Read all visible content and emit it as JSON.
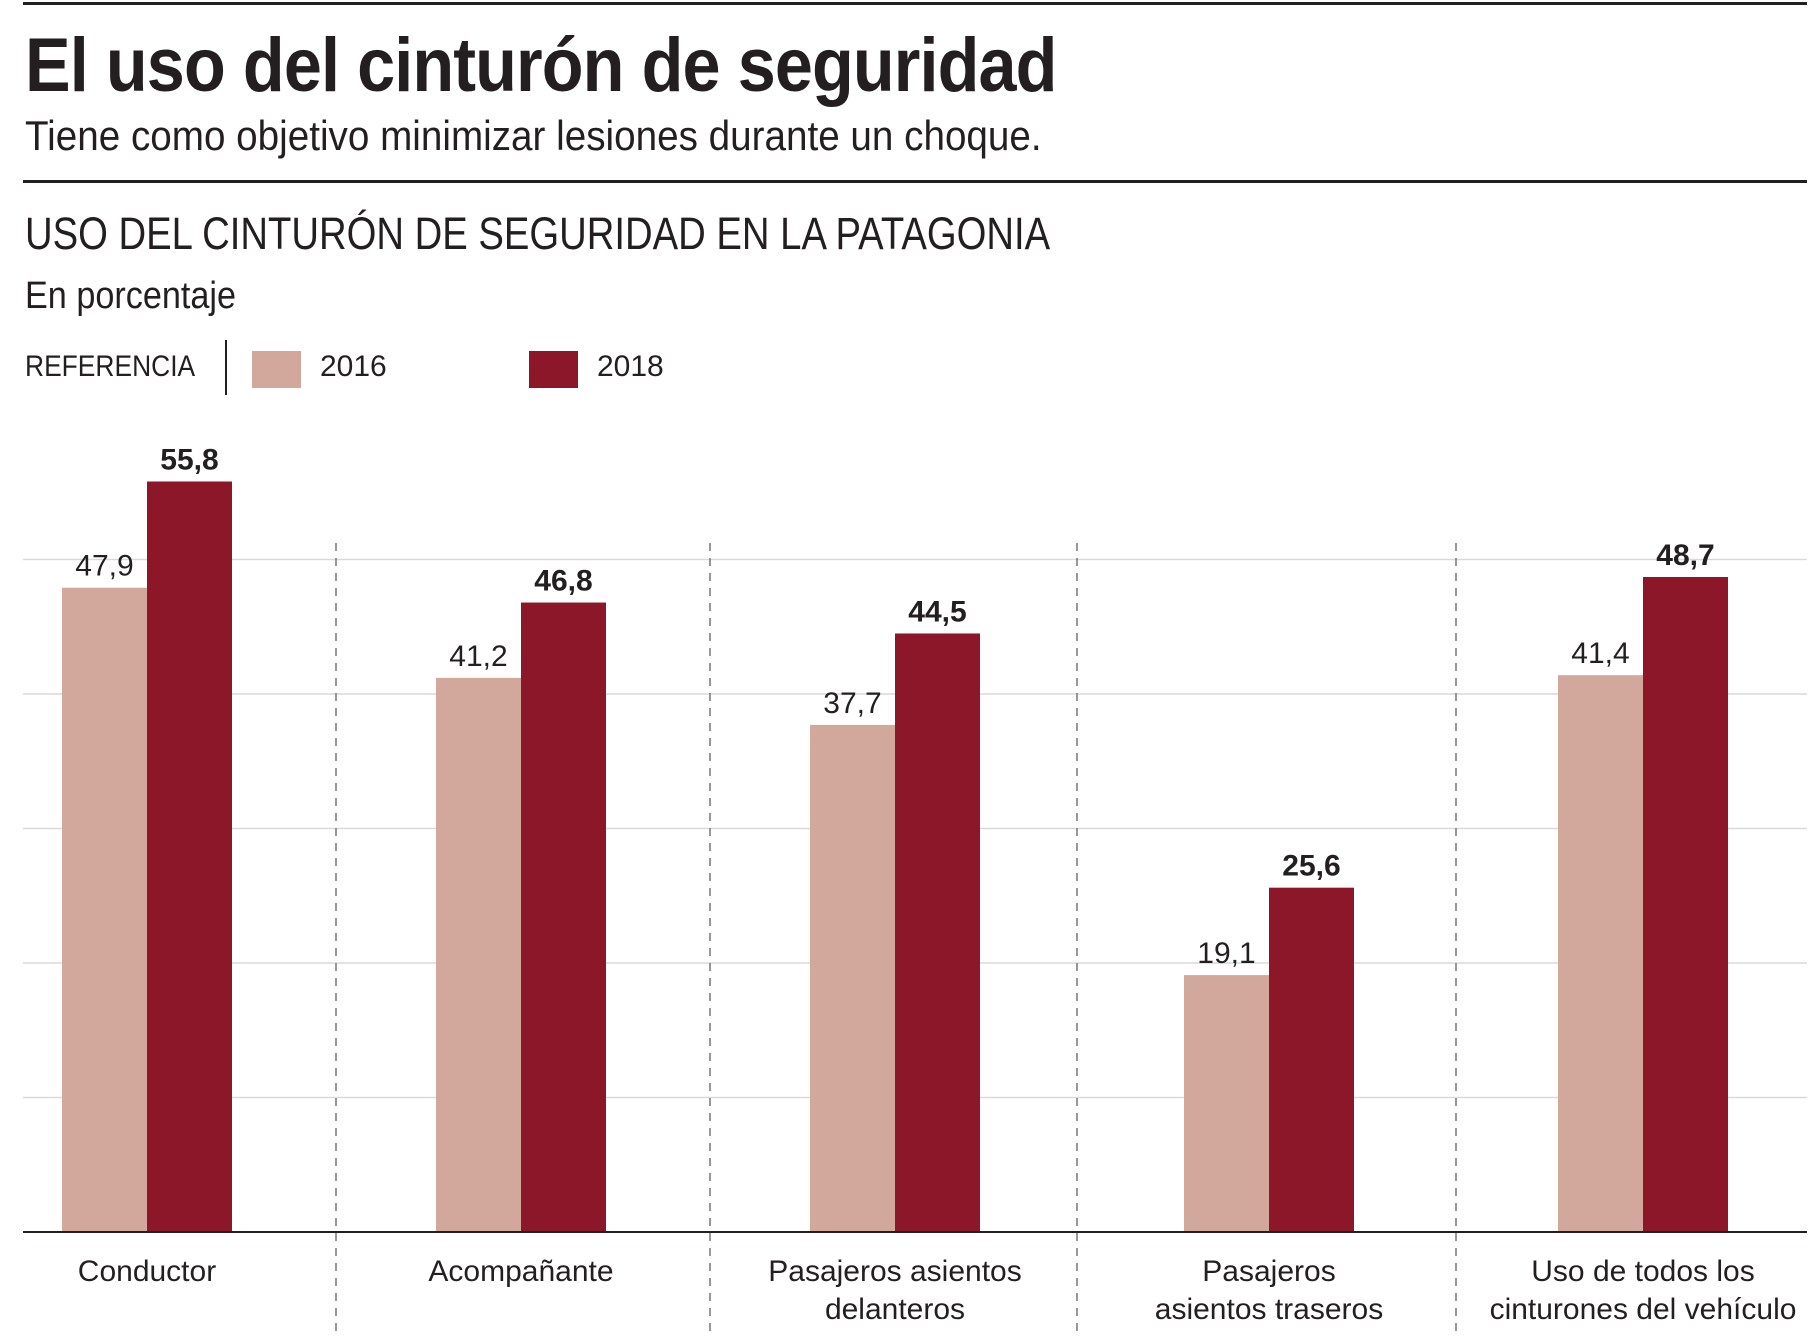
{
  "header": {
    "title": "El uso del cinturón de seguridad",
    "subtitle": "Tiene como objetivo minimizar lesiones durante un choque."
  },
  "legend": {
    "label": "REFERENCIA",
    "items": [
      {
        "name": "2016",
        "color": "#d2a89c"
      },
      {
        "name": "2018",
        "color": "#8b1728"
      }
    ]
  },
  "chart_data": {
    "type": "bar",
    "title": "USO DEL CINTURÓN DE SEGURIDAD EN LA PATAGONIA",
    "subtitle": "En porcentaje",
    "xlabel": "",
    "ylabel": "",
    "ylim": [
      0,
      60
    ],
    "gridlines": [
      10,
      20,
      30,
      40,
      50
    ],
    "grid": true,
    "legend_position": "top-left",
    "categories": [
      [
        "Conductor"
      ],
      [
        "Acompañante"
      ],
      [
        "Pasajeros asientos",
        "delanteros"
      ],
      [
        "Pasajeros",
        "asientos traseros"
      ],
      [
        "Uso de todos los",
        "cinturones del vehículo"
      ]
    ],
    "series": [
      {
        "name": "2016",
        "color": "#d2a89c",
        "values": [
          47.9,
          41.2,
          37.7,
          19.1,
          41.4
        ],
        "labels": [
          "47,9",
          "41,2",
          "37,7",
          "19,1",
          "41,4"
        ]
      },
      {
        "name": "2018",
        "color": "#8b1728",
        "values": [
          55.8,
          46.8,
          44.5,
          25.6,
          48.7
        ],
        "labels": [
          "55,8",
          "46,8",
          "44,5",
          "25,6",
          "48,7"
        ]
      }
    ]
  }
}
